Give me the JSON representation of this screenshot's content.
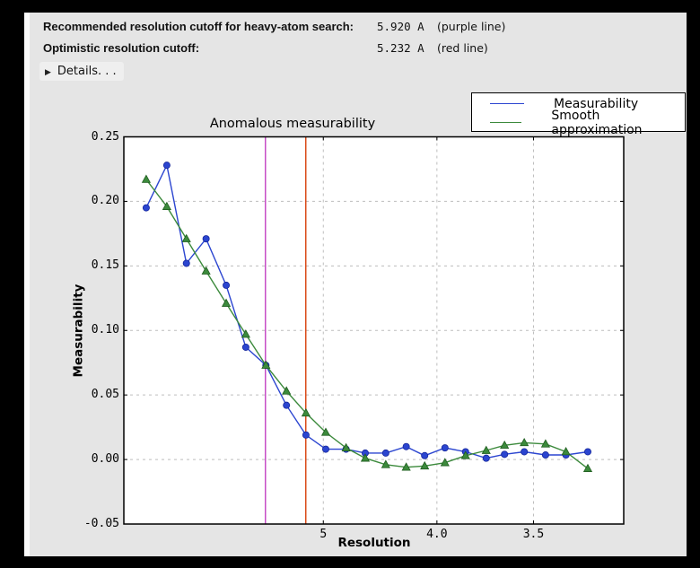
{
  "header": {
    "rows": [
      {
        "label": "Recommended resolution cutoff for heavy-atom search:",
        "value": "5.920 A",
        "note": "(purple line)"
      },
      {
        "label": "Optimistic resolution cutoff:",
        "value": "5.232 A",
        "note": "(red line)"
      }
    ],
    "details_label": "Details. . ."
  },
  "chart_data": {
    "type": "line",
    "title": "Anomalous measurability",
    "xlabel": "Resolution",
    "ylabel": "Measurability",
    "grid": "dashed",
    "legend_position": "top-right-outside",
    "x_axis": {
      "scale": "linear in 1/d^2 (d = resolution in Angstrom, decreasing d to the right)",
      "range_inv_d2": [
        0.00049,
        0.0995
      ],
      "ticks": [
        {
          "label": "5",
          "d": 5.0
        },
        {
          "label": "4.0",
          "d": 4.0
        },
        {
          "label": "3.5",
          "d": 3.5
        }
      ]
    },
    "y_axis": {
      "min": -0.05,
      "max": 0.25,
      "ticks": [
        {
          "label": "0.25",
          "v": 0.25
        },
        {
          "label": "0.20",
          "v": 0.2
        },
        {
          "label": "0.15",
          "v": 0.15
        },
        {
          "label": "0.10",
          "v": 0.1
        },
        {
          "label": "0.05",
          "v": 0.05
        },
        {
          "label": "0.00",
          "v": 0.0
        },
        {
          "label": "-0.05",
          "v": -0.05
        }
      ]
    },
    "x_resolution_d": [
      14.26,
      10.54,
      8.81,
      7.72,
      6.94,
      6.37,
      5.91,
      5.53,
      5.23,
      4.97,
      4.74,
      4.55,
      4.37,
      4.21,
      4.08,
      3.95,
      3.83,
      3.72,
      3.63,
      3.54,
      3.45,
      3.37,
      3.29
    ],
    "series": [
      {
        "name": "Measurability",
        "color": "#2b45d0",
        "marker_edge": "#16279b",
        "marker": "circle",
        "values": [
          0.195,
          0.228,
          0.152,
          0.171,
          0.135,
          0.087,
          0.073,
          0.042,
          0.019,
          0.008,
          0.008,
          0.005,
          0.005,
          0.01,
          0.003,
          0.009,
          0.006,
          0.001,
          0.004,
          0.006,
          0.0035,
          0.0035,
          0.006
        ]
      },
      {
        "name": "Smooth approximation",
        "color": "#3c8a3c",
        "marker_edge": "#1e5c1e",
        "marker": "triangle",
        "values": [
          0.217,
          0.196,
          0.171,
          0.146,
          0.121,
          0.097,
          0.073,
          0.053,
          0.036,
          0.021,
          0.009,
          0.001,
          -0.004,
          -0.006,
          -0.005,
          -0.0025,
          0.003,
          0.007,
          0.011,
          0.013,
          0.012,
          0.006,
          -0.007
        ]
      }
    ],
    "vlines": [
      {
        "name": "recommended-cutoff",
        "d": 5.92,
        "color": "#c341c3"
      },
      {
        "name": "optimistic-cutoff",
        "d": 5.232,
        "color": "#d8400a"
      }
    ]
  },
  "colors": {
    "panel": "#e5e5e5",
    "plot_background": "#ffffff",
    "grid": "#bdbdbd",
    "frame": "#000000"
  }
}
